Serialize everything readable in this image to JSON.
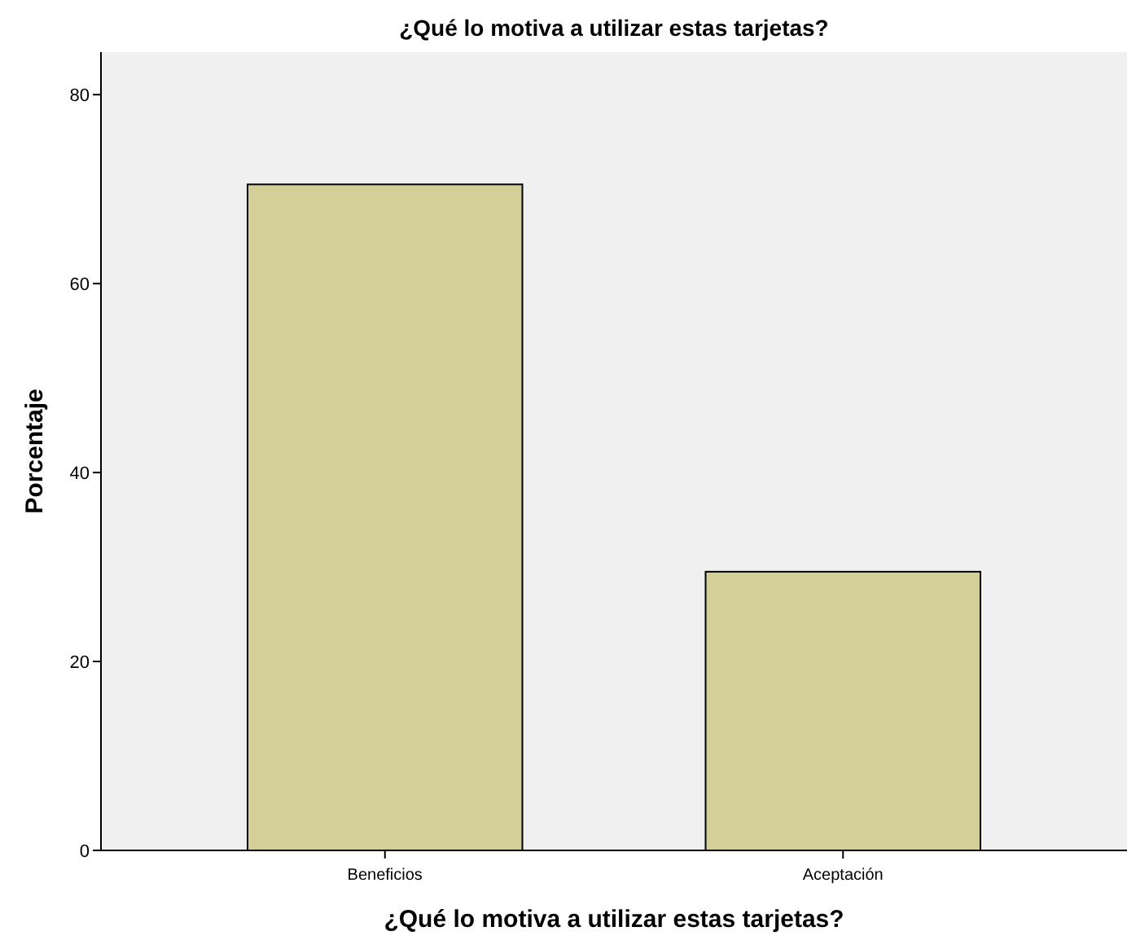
{
  "chart_data": {
    "type": "bar",
    "title": "¿Qué lo motiva a utilizar estas tarjetas?",
    "xlabel": "¿Qué lo motiva a utilizar estas tarjetas?",
    "ylabel": "Porcentaje",
    "categories": [
      "Beneficios",
      "Aceptación"
    ],
    "values": [
      70.5,
      29.5
    ],
    "color": "#d4cf98",
    "ylim": [
      0,
      84.5
    ],
    "yticks": [
      0,
      20,
      40,
      60,
      80
    ],
    "grid": false
  }
}
